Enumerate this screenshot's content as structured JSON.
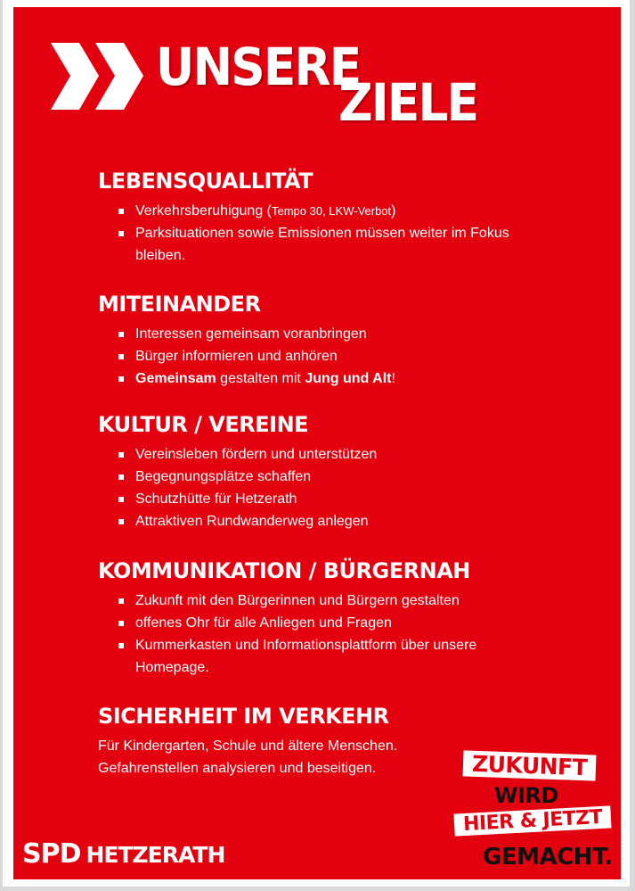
{
  "title": {
    "line1": "UNSERE",
    "line2": "ZIELE"
  },
  "sections": [
    {
      "heading": "LEBENSQUALLITÄT",
      "bullets": [
        [
          {
            "t": "Verkehrsberuhigung ("
          },
          {
            "t": "Tempo 30, LKW-Verbot",
            "style": "small"
          },
          {
            "t": ")"
          }
        ],
        [
          {
            "t": "Parksituationen sowie Emissionen müssen weiter im Fokus bleiben."
          }
        ]
      ]
    },
    {
      "heading": "MITEINANDER",
      "bullets": [
        [
          {
            "t": "Interessen gemeinsam voranbringen"
          }
        ],
        [
          {
            "t": "Bürger informieren und anhören"
          }
        ],
        [
          {
            "t": "Gemeinsam",
            "style": "b"
          },
          {
            "t": " gestalten mit "
          },
          {
            "t": "Jung und Alt",
            "style": "b"
          },
          {
            "t": "!"
          }
        ]
      ]
    },
    {
      "heading": "KULTUR / VEREINE",
      "bullets": [
        [
          {
            "t": "Vereinsleben fördern und unterstützen"
          }
        ],
        [
          {
            "t": "Begegnungsplätze schaffen"
          }
        ],
        [
          {
            "t": "Schutzhütte für Hetzerath"
          }
        ],
        [
          {
            "t": "Attraktiven Rundwanderweg anlegen"
          }
        ]
      ]
    },
    {
      "heading": "KOMMUNIKATION / BÜRGERNAH",
      "bullets": [
        [
          {
            "t": "Zukunft mit den Bürgerinnen und Bürgern gestalten"
          }
        ],
        [
          {
            "t": "offenes Ohr für alle Anliegen und Fragen"
          }
        ],
        [
          {
            "t": "Kummerkasten und Informationsplattform über unsere Homepage."
          }
        ]
      ]
    },
    {
      "heading": "SICHERHEIT IM VERKEHR",
      "lines": [
        "Für Kindergarten, Schule und ältere Menschen.",
        "Gefahrenstellen analysieren und beseitigen."
      ]
    }
  ],
  "logo": {
    "spd": "SPD",
    "place": "HETZERATH"
  },
  "slogan": {
    "l1": "ZUKUNFT",
    "l2": "WIRD",
    "l3": "HIER & JETZT",
    "l4": "GEMACHT."
  },
  "colors": {
    "red": "#e3000f",
    "white": "#ffffff",
    "black": "#111111"
  }
}
